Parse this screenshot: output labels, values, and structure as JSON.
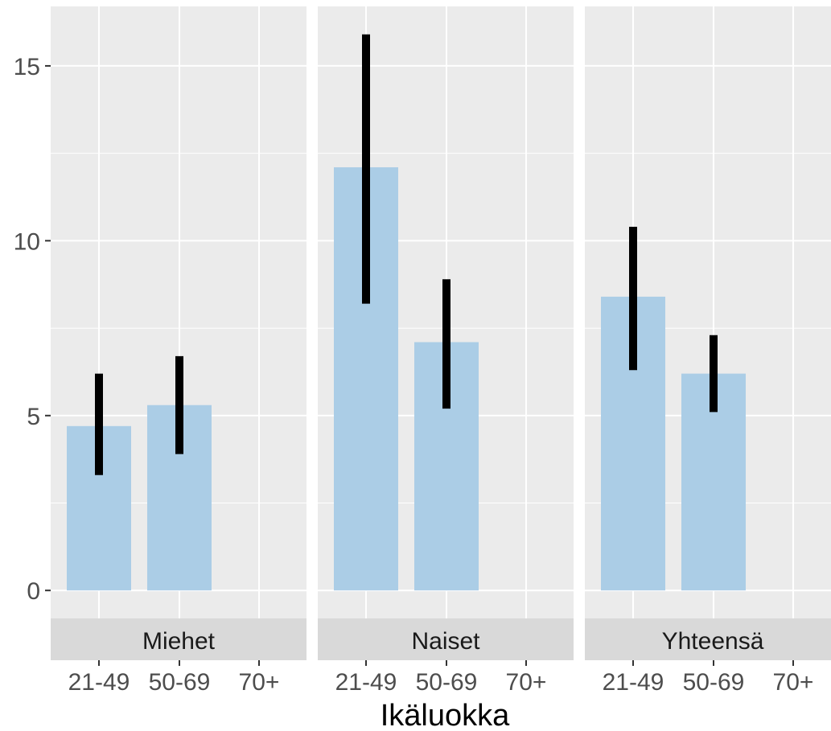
{
  "chart_data": {
    "type": "bar",
    "facets": [
      "Miehet",
      "Naiset",
      "Yhteensä"
    ],
    "categories": [
      "21-49",
      "50-69",
      "70+"
    ],
    "series": [
      {
        "facet": "Miehet",
        "values": [
          4.7,
          5.3,
          null
        ],
        "error_low": [
          3.3,
          3.9,
          null
        ],
        "error_high": [
          6.2,
          6.7,
          null
        ]
      },
      {
        "facet": "Naiset",
        "values": [
          12.1,
          7.1,
          null
        ],
        "error_low": [
          8.2,
          5.2,
          null
        ],
        "error_high": [
          15.9,
          8.9,
          null
        ]
      },
      {
        "facet": "Yhteensä",
        "values": [
          8.4,
          6.2,
          null
        ],
        "error_low": [
          6.3,
          5.1,
          null
        ],
        "error_high": [
          10.4,
          7.3,
          null
        ]
      }
    ],
    "y_ticks": [
      0,
      5,
      10,
      15
    ],
    "ylim": [
      -0.8,
      16.7
    ],
    "xlabel": "Ikäluokka",
    "ylabel": "",
    "grid": true,
    "bar_color": "#abcde6",
    "error_bar_color": "#000000",
    "panel_background": "#ebebeb",
    "strip_background": "#d9d9d9"
  }
}
